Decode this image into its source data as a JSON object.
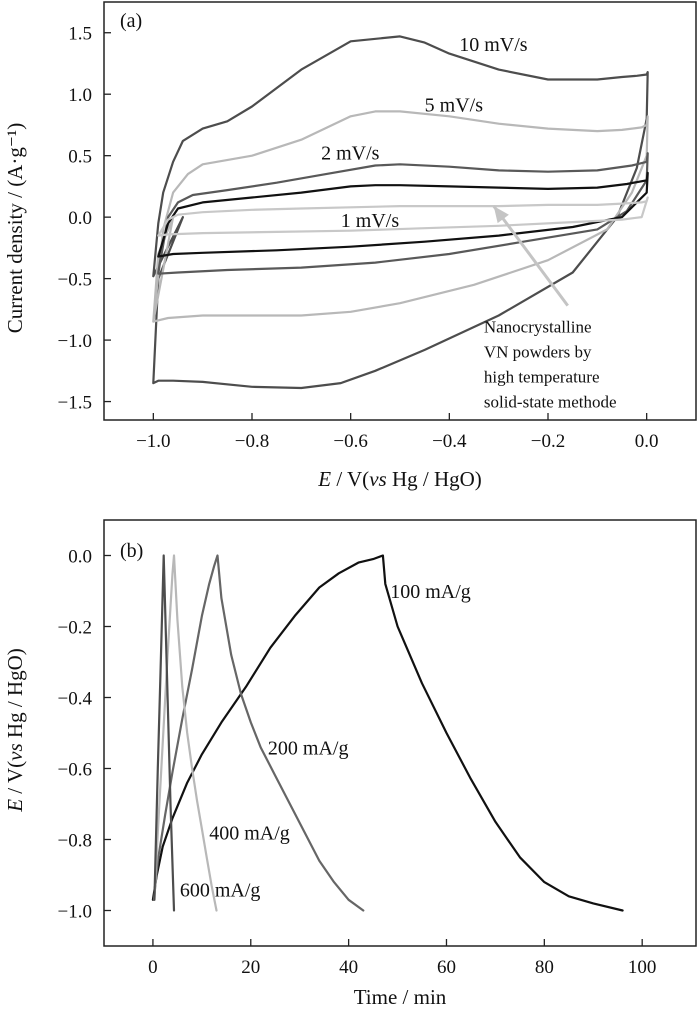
{
  "chart_data": [
    {
      "type": "line",
      "panel_label": "(a)",
      "xlabel": "E / V(vs Hg / HgO)",
      "ylabel": "Current density / (A·g⁻¹)",
      "xlim": [
        -1.1,
        0.1
      ],
      "ylim": [
        -1.65,
        1.75
      ],
      "xticks": [
        -1.0,
        -0.8,
        -0.6,
        -0.4,
        -0.2,
        0.0
      ],
      "xtick_labels": [
        "−1.0",
        "−0.8",
        "−0.6",
        "−0.4",
        "−0.2",
        "0.0"
      ],
      "yticks": [
        -1.5,
        -1.0,
        -0.5,
        0.0,
        0.5,
        1.0,
        1.5
      ],
      "ytick_labels": [
        "−1.5",
        "−1.0",
        "−0.5",
        "0.0",
        "0.5",
        "1.0",
        "1.5"
      ],
      "series": [
        {
          "name": "10 mV/s",
          "color": "#4d4d4d",
          "x": [
            -1.0,
            -0.99,
            -0.98,
            -0.96,
            -0.94,
            -0.9,
            -0.85,
            -0.8,
            -0.7,
            -0.6,
            -0.5,
            -0.45,
            -0.4,
            -0.3,
            -0.2,
            -0.1,
            -0.05,
            -0.02,
            0.0,
            0.002,
            0.0,
            -0.02,
            -0.06,
            -0.15,
            -0.3,
            -0.45,
            -0.55,
            -0.62,
            -0.7,
            -0.8,
            -0.9,
            -0.96,
            -0.99,
            -1.0,
            -0.99,
            -0.96,
            -0.94,
            -1.0
          ],
          "y": [
            -0.48,
            -0.05,
            0.2,
            0.45,
            0.62,
            0.72,
            0.78,
            0.9,
            1.2,
            1.43,
            1.47,
            1.42,
            1.33,
            1.2,
            1.12,
            1.12,
            1.14,
            1.15,
            1.16,
            1.18,
            0.8,
            0.4,
            0.0,
            -0.45,
            -0.8,
            -1.08,
            -1.25,
            -1.35,
            -1.39,
            -1.38,
            -1.34,
            -1.33,
            -1.33,
            -1.35,
            -0.5,
            -0.2,
            0.0,
            -0.48
          ]
        },
        {
          "name": "5 mV/s",
          "color": "#b8b8b8",
          "x": [
            -1.0,
            -0.98,
            -0.96,
            -0.93,
            -0.9,
            -0.8,
            -0.7,
            -0.6,
            -0.55,
            -0.5,
            -0.4,
            -0.3,
            -0.2,
            -0.1,
            -0.05,
            -0.01,
            0.0,
            0.002,
            0.0,
            -0.03,
            -0.08,
            -0.2,
            -0.35,
            -0.5,
            -0.6,
            -0.7,
            -0.8,
            -0.9,
            -0.97,
            -1.0,
            -0.99,
            -0.96,
            -1.0
          ],
          "y": [
            -0.85,
            -0.1,
            0.2,
            0.35,
            0.43,
            0.5,
            0.63,
            0.82,
            0.86,
            0.86,
            0.82,
            0.76,
            0.72,
            0.7,
            0.71,
            0.73,
            0.75,
            0.82,
            0.5,
            0.2,
            -0.1,
            -0.35,
            -0.55,
            -0.7,
            -0.77,
            -0.8,
            -0.8,
            -0.8,
            -0.82,
            -0.85,
            -0.3,
            0.0,
            -0.85
          ]
        },
        {
          "name": "2 mV/s",
          "color": "#595959",
          "x": [
            -0.99,
            -0.97,
            -0.95,
            -0.92,
            -0.85,
            -0.75,
            -0.65,
            -0.55,
            -0.5,
            -0.4,
            -0.3,
            -0.2,
            -0.1,
            -0.03,
            0.0,
            0.002,
            0.0,
            -0.04,
            -0.1,
            -0.25,
            -0.4,
            -0.55,
            -0.7,
            -0.85,
            -0.95,
            -0.99,
            -0.98,
            -0.99
          ],
          "y": [
            -0.45,
            0.0,
            0.12,
            0.18,
            0.22,
            0.28,
            0.35,
            0.42,
            0.43,
            0.41,
            0.38,
            0.37,
            0.38,
            0.42,
            0.45,
            0.52,
            0.3,
            0.05,
            -0.1,
            -0.2,
            -0.3,
            -0.37,
            -0.41,
            -0.43,
            -0.45,
            -0.46,
            -0.2,
            -0.45
          ]
        },
        {
          "name": "1 mV/s",
          "color": "#111111",
          "x": [
            -0.99,
            -0.97,
            -0.95,
            -0.9,
            -0.8,
            -0.7,
            -0.6,
            -0.55,
            -0.5,
            -0.4,
            -0.3,
            -0.2,
            -0.1,
            -0.04,
            0.0,
            0.002,
            0.0,
            -0.05,
            -0.15,
            -0.3,
            -0.45,
            -0.6,
            -0.75,
            -0.9,
            -0.96,
            -0.99,
            -0.99
          ],
          "y": [
            -0.32,
            -0.05,
            0.07,
            0.12,
            0.16,
            0.2,
            0.25,
            0.26,
            0.26,
            0.25,
            0.24,
            0.23,
            0.24,
            0.27,
            0.3,
            0.36,
            0.2,
            0.0,
            -0.08,
            -0.15,
            -0.2,
            -0.24,
            -0.27,
            -0.29,
            -0.3,
            -0.32,
            -0.32
          ]
        },
        {
          "name": "Nanocrystalline VN powders by high temperature solid-state methode",
          "color": "#c8c8c8",
          "x": [
            -0.99,
            -0.97,
            -0.95,
            -0.9,
            -0.8,
            -0.7,
            -0.6,
            -0.5,
            -0.4,
            -0.3,
            -0.2,
            -0.1,
            -0.05,
            -0.01,
            0.0,
            0.002,
            -0.01,
            -0.05,
            -0.15,
            -0.3,
            -0.45,
            -0.6,
            -0.75,
            -0.9,
            -0.97,
            -0.99,
            -0.99
          ],
          "y": [
            -0.15,
            -0.02,
            0.02,
            0.04,
            0.06,
            0.07,
            0.08,
            0.09,
            0.09,
            0.09,
            0.1,
            0.1,
            0.11,
            0.12,
            0.13,
            0.16,
            0.0,
            -0.02,
            -0.04,
            -0.07,
            -0.09,
            -0.11,
            -0.12,
            -0.13,
            -0.14,
            -0.15,
            -0.15
          ]
        }
      ],
      "annotations": [
        {
          "text": "10 mV/s",
          "at": [
            -0.38,
            1.35
          ]
        },
        {
          "text": "5 mV/s",
          "at": [
            -0.45,
            0.86
          ]
        },
        {
          "text": "2 mV/s",
          "at": [
            -0.66,
            0.47
          ]
        },
        {
          "text": "1 mV/s",
          "at": [
            -0.62,
            -0.08
          ]
        },
        {
          "lines": [
            "Nanocrystalline",
            "VN powders by",
            "high temperature",
            "solid-state methode"
          ],
          "at": [
            -0.33,
            -0.94
          ]
        }
      ],
      "arrow": {
        "from": [
          -0.16,
          -0.72
        ],
        "to": [
          -0.31,
          0.09
        ]
      }
    },
    {
      "type": "line",
      "panel_label": "(b)",
      "xlabel": "Time / min",
      "ylabel": "E / V(vs Hg / HgO)",
      "xlim": [
        -10,
        111
      ],
      "ylim": [
        -1.1,
        0.1
      ],
      "xticks": [
        0,
        20,
        40,
        60,
        80,
        100
      ],
      "xtick_labels": [
        "0",
        "20",
        "40",
        "60",
        "80",
        "100"
      ],
      "yticks": [
        -1.0,
        -0.8,
        -0.6,
        -0.4,
        -0.2,
        0.0
      ],
      "ytick_labels": [
        "−1.0",
        "−0.8",
        "−0.6",
        "−0.4",
        "−0.2",
        "0.0"
      ],
      "series": [
        {
          "name": "100 mA/g",
          "color": "#111111",
          "x": [
            0,
            0.8,
            2,
            4,
            7,
            10,
            14,
            19,
            24,
            29,
            34,
            38,
            42,
            45,
            47,
            47.5,
            50,
            55,
            60,
            65,
            70,
            75,
            80,
            85,
            90,
            96
          ],
          "y": [
            -0.97,
            -0.9,
            -0.82,
            -0.74,
            -0.64,
            -0.56,
            -0.47,
            -0.37,
            -0.26,
            -0.17,
            -0.09,
            -0.05,
            -0.02,
            -0.01,
            0.0,
            -0.08,
            -0.2,
            -0.36,
            -0.5,
            -0.63,
            -0.75,
            -0.85,
            -0.92,
            -0.96,
            -0.98,
            -1.0
          ]
        },
        {
          "name": "200 mA/g",
          "color": "#666666",
          "x": [
            0.2,
            1,
            2.5,
            4,
            6,
            8,
            10,
            11.5,
            12.5,
            13.2,
            14,
            16,
            18,
            20,
            22,
            25,
            28,
            31,
            34,
            37,
            40,
            43
          ],
          "y": [
            -0.97,
            -0.86,
            -0.73,
            -0.61,
            -0.46,
            -0.32,
            -0.17,
            -0.08,
            -0.03,
            0.0,
            -0.12,
            -0.28,
            -0.39,
            -0.47,
            -0.54,
            -0.62,
            -0.7,
            -0.78,
            -0.86,
            -0.92,
            -0.97,
            -1.0
          ]
        },
        {
          "name": "400 mA/g",
          "color": "#b8b8b8",
          "x": [
            0.3,
            1,
            2,
            3,
            4,
            4.3,
            5,
            6,
            7,
            8,
            9,
            10,
            11,
            12,
            13
          ],
          "y": [
            -0.97,
            -0.78,
            -0.53,
            -0.28,
            -0.05,
            0.0,
            -0.18,
            -0.37,
            -0.5,
            -0.6,
            -0.69,
            -0.77,
            -0.85,
            -0.93,
            -1.0
          ]
        },
        {
          "name": "600 mA/g",
          "color": "#4d4d4d",
          "x": [
            0.3,
            1,
            1.5,
            2.2,
            3,
            3.6,
            4.3
          ],
          "y": [
            -0.97,
            -0.6,
            -0.35,
            0.0,
            -0.4,
            -0.7,
            -1.0
          ]
        }
      ],
      "annotations": [
        {
          "text": "100 mA/g",
          "at": [
            48.5,
            -0.12
          ]
        },
        {
          "text": "200 mA/g",
          "at": [
            23.5,
            -0.56
          ]
        },
        {
          "text": "400 mA/g",
          "at": [
            11.5,
            -0.8
          ]
        },
        {
          "text": "600 mA/g",
          "at": [
            5.5,
            -0.96
          ]
        }
      ]
    }
  ]
}
